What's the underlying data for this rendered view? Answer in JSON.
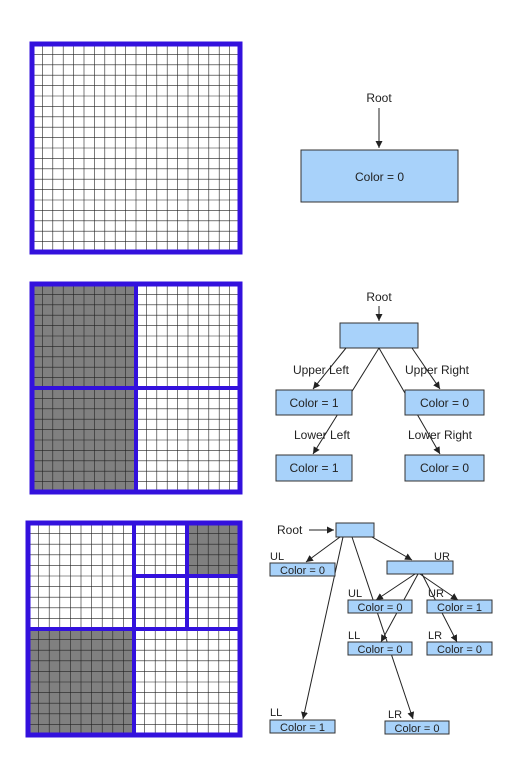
{
  "colors": {
    "border": "#3311dd",
    "grid_line": "#222222",
    "filled": "#808080",
    "node_fill": "#a8d2fa",
    "node_stroke": "#333333",
    "edge": "#222222"
  },
  "figure1": {
    "root_label": "Root",
    "root_node": "Color = 0"
  },
  "figure2": {
    "root_label": "Root",
    "edge_ul": "Upper Left",
    "edge_ur": "Upper Right",
    "edge_ll": "Lower Left",
    "edge_lr": "Lower Right",
    "node_ul": "Color = 1",
    "node_ur": "Color = 0",
    "node_ll": "Color = 1",
    "node_lr": "Color = 0"
  },
  "figure3": {
    "root_label": "Root",
    "edge_ul": "UL",
    "edge_ur": "UR",
    "node_ul": "Color = 0",
    "sub_ul": "UL",
    "sub_ur": "UR",
    "sub_ll": "LL",
    "sub_lr": "LR",
    "node_sub_ul": "Color = 0",
    "node_sub_ur": "Color = 1",
    "node_sub_ll": "Color = 0",
    "node_sub_lr": "Color = 0",
    "edge_ll": "LL",
    "edge_lr": "LR",
    "node_ll": "Color = 1",
    "node_lr": "Color = 0"
  }
}
